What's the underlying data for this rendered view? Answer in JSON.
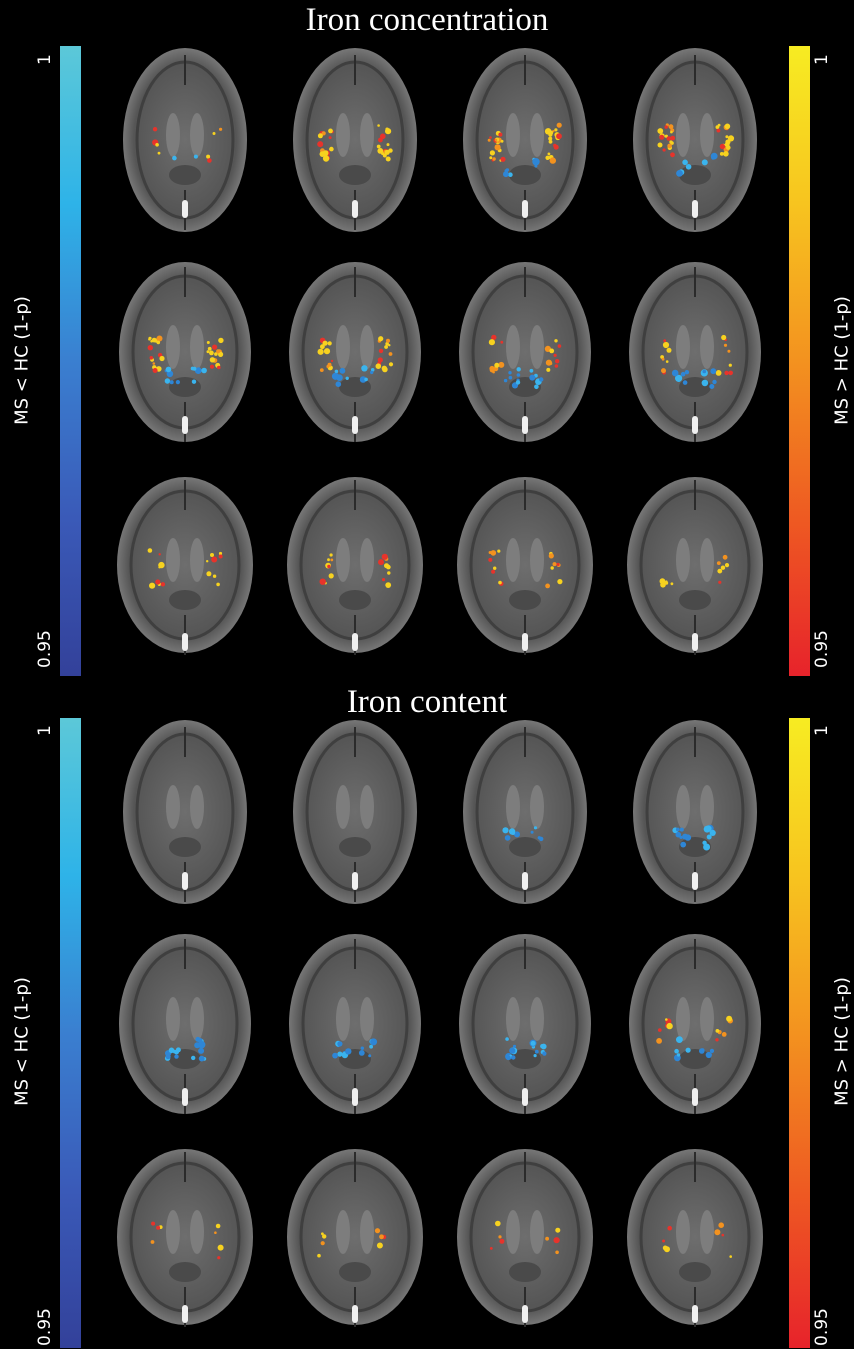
{
  "panels": [
    {
      "title": "Iron concentration",
      "left_colorbar": {
        "top_tick": "1",
        "bottom_tick": "0.95",
        "label": "MS < HC (1-p)"
      },
      "right_colorbar": {
        "top_tick": "1",
        "bottom_tick": "0.95",
        "label": "MS > HC (1-p)"
      },
      "slices": [
        {
          "warm": 0.2,
          "cool": 0.1
        },
        {
          "warm": 0.8,
          "cool": 0.0
        },
        {
          "warm": 0.9,
          "cool": 0.3
        },
        {
          "warm": 0.9,
          "cool": 0.3
        },
        {
          "warm": 0.8,
          "cool": 0.5
        },
        {
          "warm": 0.7,
          "cool": 0.5
        },
        {
          "warm": 0.5,
          "cool": 0.7
        },
        {
          "warm": 0.4,
          "cool": 0.6
        },
        {
          "warm": 0.4,
          "cool": 0.0
        },
        {
          "warm": 0.4,
          "cool": 0.0
        },
        {
          "warm": 0.4,
          "cool": 0.0
        },
        {
          "warm": 0.3,
          "cool": 0.0
        }
      ]
    },
    {
      "title": "Iron content",
      "left_colorbar": {
        "top_tick": "1",
        "bottom_tick": "0.95",
        "label": "MS < HC (1-p)"
      },
      "right_colorbar": {
        "top_tick": "1",
        "bottom_tick": "0.95",
        "label": "MS > HC (1-p)"
      },
      "slices": [
        {
          "warm": 0.0,
          "cool": 0.0
        },
        {
          "warm": 0.0,
          "cool": 0.0
        },
        {
          "warm": 0.0,
          "cool": 0.4
        },
        {
          "warm": 0.0,
          "cool": 0.7
        },
        {
          "warm": 0.0,
          "cool": 0.8
        },
        {
          "warm": 0.0,
          "cool": 0.7
        },
        {
          "warm": 0.0,
          "cool": 0.8
        },
        {
          "warm": 0.3,
          "cool": 0.4
        },
        {
          "warm": 0.2,
          "cool": 0.0
        },
        {
          "warm": 0.2,
          "cool": 0.0
        },
        {
          "warm": 0.2,
          "cool": 0.0
        },
        {
          "warm": 0.2,
          "cool": 0.0
        }
      ]
    }
  ],
  "colors": {
    "background": "#000000",
    "cool_low": "#33419a",
    "cool_high": "#5cc8d8",
    "warm_low": "#e7232b",
    "warm_high": "#f7ec22"
  }
}
